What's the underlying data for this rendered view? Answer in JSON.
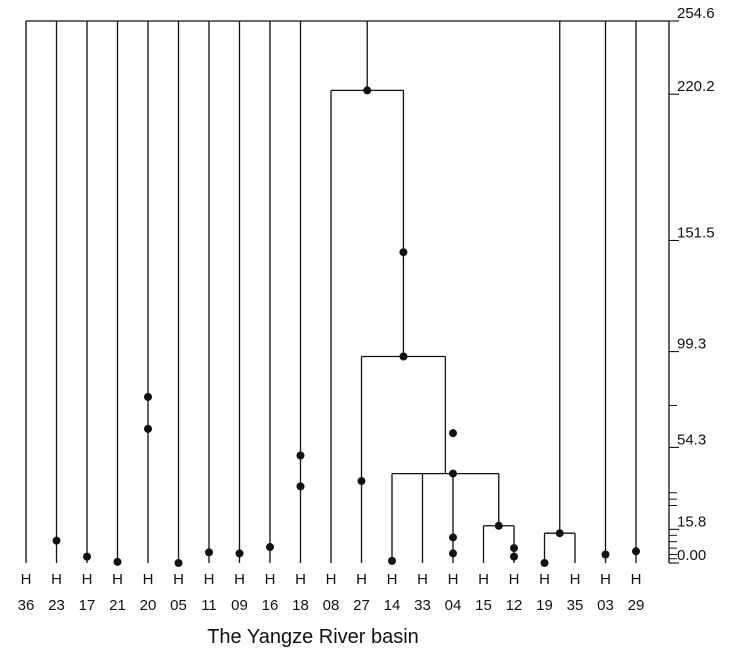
{
  "caption": "The Yangze River basin",
  "colors": {
    "line": "#111111",
    "background": "#ffffff"
  },
  "chart_data": {
    "type": "dendrogram",
    "axis": {
      "side": "right",
      "range": [
        0,
        254.6
      ],
      "ticks": [
        "254.6",
        "220.2",
        "151.5",
        "99.3",
        "54.3",
        "15.8",
        "0.00"
      ],
      "tick_values": [
        254.6,
        220.2,
        151.5,
        99.3,
        54.3,
        15.8,
        0
      ]
    },
    "leaves": [
      {
        "prefix": "H",
        "id": "36"
      },
      {
        "prefix": "H",
        "id": "23"
      },
      {
        "prefix": "H",
        "id": "17"
      },
      {
        "prefix": "H",
        "id": "21"
      },
      {
        "prefix": "H",
        "id": "20"
      },
      {
        "prefix": "H",
        "id": "05"
      },
      {
        "prefix": "H",
        "id": "11"
      },
      {
        "prefix": "H",
        "id": "09"
      },
      {
        "prefix": "H",
        "id": "16"
      },
      {
        "prefix": "H",
        "id": "18"
      },
      {
        "prefix": "H",
        "id": "08"
      },
      {
        "prefix": "H",
        "id": "27"
      },
      {
        "prefix": "H",
        "id": "14"
      },
      {
        "prefix": "H",
        "id": "33"
      },
      {
        "prefix": "H",
        "id": "04"
      },
      {
        "prefix": "H",
        "id": "15"
      },
      {
        "prefix": "H",
        "id": "12"
      },
      {
        "prefix": "H",
        "id": "19"
      },
      {
        "prefix": "H",
        "id": "35"
      },
      {
        "prefix": "H",
        "id": "03"
      },
      {
        "prefix": "H",
        "id": "29"
      }
    ],
    "merges": [
      {
        "children": [
          "L15",
          "L16"
        ],
        "height": 17.5
      },
      {
        "children": [
          "L17",
          "L18"
        ],
        "height": 14.0
      },
      {
        "children": [
          "L12",
          "L13",
          "L14",
          "M0"
        ],
        "height": 42.0
      },
      {
        "children": [
          "L11",
          "M2"
        ],
        "height": 97.0
      },
      {
        "children": [
          "L10",
          "M3"
        ],
        "height": 222.0
      }
    ],
    "roots": [
      "L0",
      "L1",
      "L2",
      "L3",
      "L4",
      "L5",
      "L6",
      "L7",
      "L8",
      "L9",
      "M4",
      "M1",
      "L19",
      "L20"
    ],
    "markers": [
      {
        "node": "L1",
        "value": 10.5
      },
      {
        "node": "L2",
        "value": 3.0
      },
      {
        "node": "L3",
        "value": 0.5
      },
      {
        "node": "L4",
        "value": 78.0
      },
      {
        "node": "L4",
        "value": 63.0
      },
      {
        "node": "L5",
        "value": 0.0
      },
      {
        "node": "L6",
        "value": 5.0
      },
      {
        "node": "L7",
        "value": 4.5
      },
      {
        "node": "L8",
        "value": 7.5
      },
      {
        "node": "L9",
        "value": 50.5
      },
      {
        "node": "L9",
        "value": 36.0
      },
      {
        "node": "L11",
        "value": 38.5
      },
      {
        "node": "L12",
        "value": 1.0
      },
      {
        "node": "L14",
        "value": 61.0
      },
      {
        "node": "L14",
        "value": 42.0
      },
      {
        "node": "L14",
        "value": 12.0
      },
      {
        "node": "L14",
        "value": 4.5
      },
      {
        "node": "L16",
        "value": 7.0
      },
      {
        "node": "L16",
        "value": 3.0
      },
      {
        "node": "L17",
        "value": 0.0
      },
      {
        "node": "M1",
        "value": 14.0
      },
      {
        "node": "M0",
        "value": 17.5
      },
      {
        "node": "M3",
        "value": 97.0
      },
      {
        "node": "M3",
        "value": 146.0
      },
      {
        "node": "M4",
        "value": 222.0
      },
      {
        "node": "L19",
        "value": 4.0
      },
      {
        "node": "L20",
        "value": 5.5
      }
    ]
  }
}
